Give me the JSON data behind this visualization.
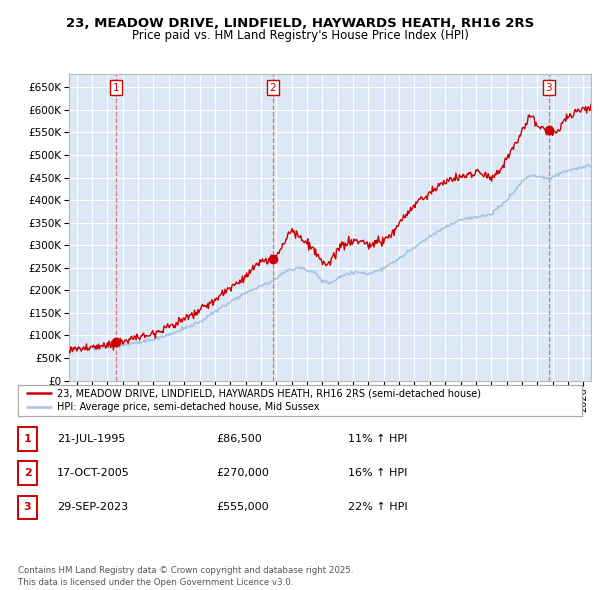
{
  "title1": "23, MEADOW DRIVE, LINDFIELD, HAYWARDS HEATH, RH16 2RS",
  "title2": "Price paid vs. HM Land Registry's House Price Index (HPI)",
  "legend_line1": "23, MEADOW DRIVE, LINDFIELD, HAYWARDS HEATH, RH16 2RS (semi-detached house)",
  "legend_line2": "HPI: Average price, semi-detached house, Mid Sussex",
  "footer": "Contains HM Land Registry data © Crown copyright and database right 2025.\nThis data is licensed under the Open Government Licence v3.0.",
  "hpi_color": "#a8c4e0",
  "price_color": "#cc0000",
  "chart_bg": "#dce8f5",
  "ylim": [
    0,
    680000
  ],
  "yticks": [
    0,
    50000,
    100000,
    150000,
    200000,
    250000,
    300000,
    350000,
    400000,
    450000,
    500000,
    550000,
    600000,
    650000
  ],
  "xlim_start": 1992.5,
  "xlim_end": 2026.5,
  "xticks": [
    1993,
    1994,
    1995,
    1996,
    1997,
    1998,
    1999,
    2000,
    2001,
    2002,
    2003,
    2004,
    2005,
    2006,
    2007,
    2008,
    2009,
    2010,
    2011,
    2012,
    2013,
    2014,
    2015,
    2016,
    2017,
    2018,
    2019,
    2020,
    2021,
    2022,
    2023,
    2024,
    2025,
    2026
  ],
  "t1_x": 1995.54,
  "t1_y": 86500,
  "t2_x": 2005.79,
  "t2_y": 270000,
  "t3_x": 2023.75,
  "t3_y": 555000,
  "table_rows": [
    {
      "num": "1",
      "date": "21-JUL-1995",
      "price": "£86,500",
      "pct": "11% ↑ HPI"
    },
    {
      "num": "2",
      "date": "17-OCT-2005",
      "price": "£270,000",
      "pct": "16% ↑ HPI"
    },
    {
      "num": "3",
      "date": "29-SEP-2023",
      "price": "£555,000",
      "pct": "22% ↑ HPI"
    }
  ]
}
